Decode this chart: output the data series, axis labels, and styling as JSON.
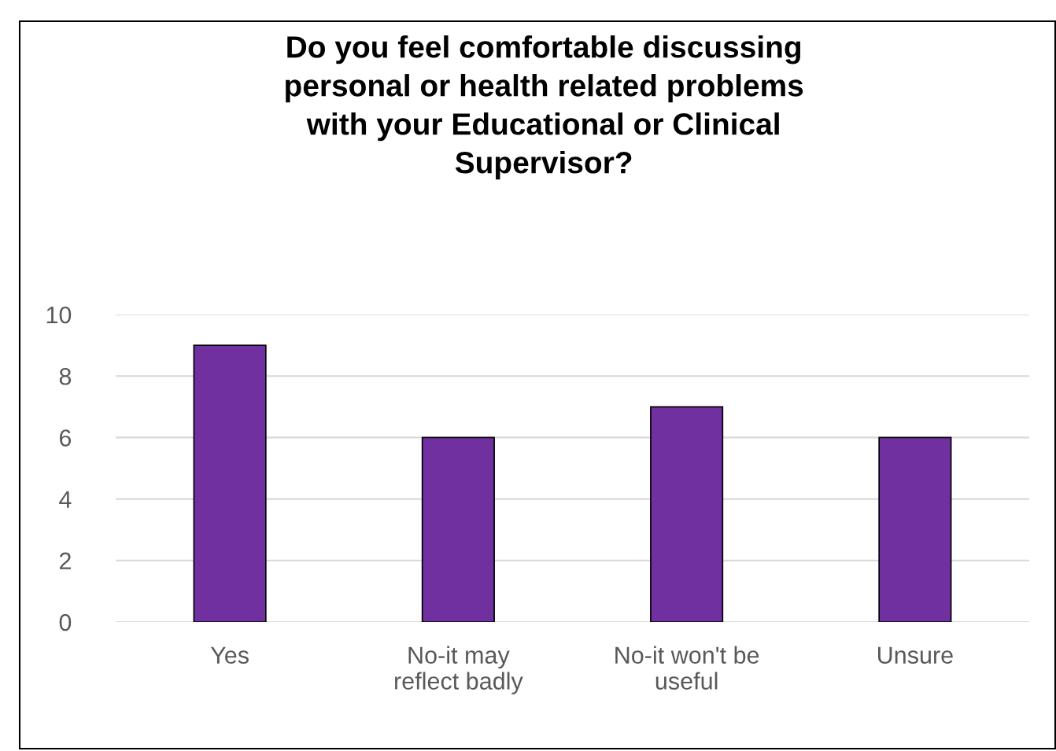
{
  "chart_data": {
    "type": "bar",
    "title": "Do you feel comfortable discussing\npersonal or health related problems\nwith your Educational or Clinical\nSupervisor?",
    "categories": [
      "Yes",
      "No-it may\nreflect badly",
      "No-it won't be\nuseful",
      "Unsure"
    ],
    "values": [
      9,
      6,
      7,
      6
    ],
    "color": "#7030a0",
    "ylim": [
      0,
      10
    ],
    "yticks": [
      0,
      2,
      4,
      6,
      8,
      10
    ],
    "grid": "y",
    "legend": false
  }
}
